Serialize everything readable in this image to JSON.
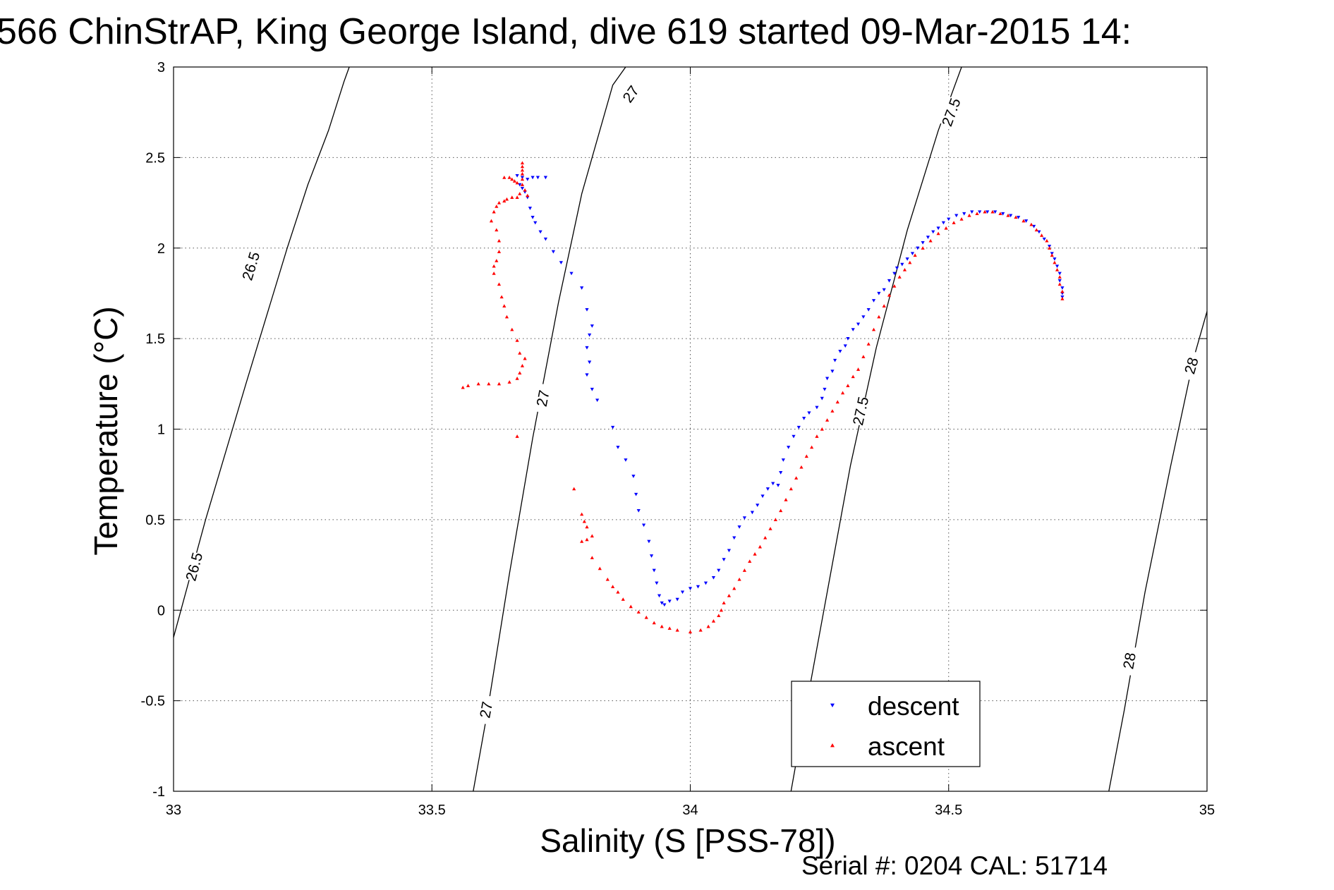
{
  "chart_data": {
    "type": "scatter",
    "title": "566 ChinStrAP, King George Island, dive 619 started 09-Mar-2015 14:",
    "xlabel": "Salinity (S [PSS-78])",
    "ylabel": "Temperature (°C)",
    "xlim": [
      33,
      35
    ],
    "ylim": [
      -1,
      3
    ],
    "x_ticks": [
      "33",
      "33.5",
      "34",
      "34.5",
      "35"
    ],
    "y_ticks": [
      "-1",
      "-0.5",
      "0",
      "0.5",
      "1",
      "1.5",
      "2",
      "2.5",
      "3"
    ],
    "grid": true,
    "legend_position": "bottom-right",
    "series": [
      {
        "name": "descent",
        "color": "#0000ff",
        "marker": "triangle-down",
        "points": [
          [
            33.665,
            2.4
          ],
          [
            33.675,
            2.39
          ],
          [
            33.685,
            2.38
          ],
          [
            33.695,
            2.39
          ],
          [
            33.705,
            2.39
          ],
          [
            33.72,
            2.39
          ],
          [
            33.67,
            2.35
          ],
          [
            33.675,
            2.33
          ],
          [
            33.68,
            2.31
          ],
          [
            33.685,
            2.28
          ],
          [
            33.69,
            2.22
          ],
          [
            33.695,
            2.17
          ],
          [
            33.7,
            2.14
          ],
          [
            33.71,
            2.09
          ],
          [
            33.72,
            2.05
          ],
          [
            33.735,
            1.98
          ],
          [
            33.75,
            1.92
          ],
          [
            33.77,
            1.86
          ],
          [
            33.79,
            1.78
          ],
          [
            33.8,
            1.66
          ],
          [
            33.81,
            1.57
          ],
          [
            33.805,
            1.52
          ],
          [
            33.8,
            1.45
          ],
          [
            33.805,
            1.37
          ],
          [
            33.8,
            1.3
          ],
          [
            33.81,
            1.22
          ],
          [
            33.82,
            1.16
          ],
          [
            33.85,
            1.01
          ],
          [
            33.86,
            0.9
          ],
          [
            33.875,
            0.83
          ],
          [
            33.89,
            0.74
          ],
          [
            33.895,
            0.64
          ],
          [
            33.9,
            0.55
          ],
          [
            33.91,
            0.47
          ],
          [
            33.92,
            0.38
          ],
          [
            33.925,
            0.3
          ],
          [
            33.93,
            0.22
          ],
          [
            33.935,
            0.15
          ],
          [
            33.94,
            0.08
          ],
          [
            33.945,
            0.04
          ],
          [
            33.95,
            0.03
          ],
          [
            33.96,
            0.05
          ],
          [
            33.975,
            0.06
          ],
          [
            33.985,
            0.1
          ],
          [
            34.0,
            0.12
          ],
          [
            34.015,
            0.13
          ],
          [
            34.03,
            0.15
          ],
          [
            34.045,
            0.18
          ],
          [
            34.055,
            0.22
          ],
          [
            34.065,
            0.28
          ],
          [
            34.075,
            0.33
          ],
          [
            34.085,
            0.4
          ],
          [
            34.095,
            0.46
          ],
          [
            34.105,
            0.51
          ],
          [
            34.12,
            0.54
          ],
          [
            34.13,
            0.58
          ],
          [
            34.14,
            0.63
          ],
          [
            34.15,
            0.67
          ],
          [
            34.16,
            0.7
          ],
          [
            34.17,
            0.69
          ],
          [
            34.175,
            0.76
          ],
          [
            34.18,
            0.83
          ],
          [
            34.19,
            0.9
          ],
          [
            34.2,
            0.96
          ],
          [
            34.21,
            1.01
          ],
          [
            34.22,
            1.06
          ],
          [
            34.23,
            1.09
          ],
          [
            34.245,
            1.12
          ],
          [
            34.255,
            1.17
          ],
          [
            34.26,
            1.22
          ],
          [
            34.265,
            1.28
          ],
          [
            34.275,
            1.32
          ],
          [
            34.28,
            1.38
          ],
          [
            34.29,
            1.43
          ],
          [
            34.3,
            1.46
          ],
          [
            34.305,
            1.5
          ],
          [
            34.315,
            1.55
          ],
          [
            34.325,
            1.58
          ],
          [
            34.335,
            1.62
          ],
          [
            34.345,
            1.66
          ],
          [
            34.355,
            1.71
          ],
          [
            34.365,
            1.75
          ],
          [
            34.375,
            1.77
          ],
          [
            34.385,
            1.82
          ],
          [
            34.395,
            1.86
          ],
          [
            34.4,
            1.89
          ],
          [
            34.41,
            1.91
          ],
          [
            34.42,
            1.94
          ],
          [
            34.43,
            1.97
          ],
          [
            34.44,
            2.0
          ],
          [
            34.45,
            2.03
          ],
          [
            34.46,
            2.06
          ],
          [
            34.47,
            2.09
          ],
          [
            34.48,
            2.11
          ],
          [
            34.49,
            2.14
          ],
          [
            34.5,
            2.16
          ],
          [
            34.515,
            2.18
          ],
          [
            34.53,
            2.19
          ],
          [
            34.545,
            2.2
          ],
          [
            34.56,
            2.2
          ],
          [
            34.575,
            2.2
          ],
          [
            34.59,
            2.2
          ],
          [
            34.605,
            2.19
          ],
          [
            34.62,
            2.18
          ],
          [
            34.635,
            2.17
          ],
          [
            34.65,
            2.15
          ],
          [
            34.665,
            2.12
          ],
          [
            34.675,
            2.09
          ],
          [
            34.685,
            2.05
          ],
          [
            34.695,
            2.01
          ],
          [
            34.7,
            1.97
          ],
          [
            34.705,
            1.94
          ],
          [
            34.71,
            1.9
          ],
          [
            34.715,
            1.86
          ],
          [
            34.715,
            1.82
          ],
          [
            34.72,
            1.78
          ],
          [
            34.72,
            1.75
          ],
          [
            34.72,
            1.73
          ]
        ]
      },
      {
        "name": "ascent",
        "color": "#ff0000",
        "marker": "triangle-up",
        "points": [
          [
            33.675,
            2.47
          ],
          [
            33.675,
            2.45
          ],
          [
            33.675,
            2.43
          ],
          [
            33.675,
            2.41
          ],
          [
            33.675,
            2.38
          ],
          [
            33.675,
            2.35
          ],
          [
            33.68,
            2.32
          ],
          [
            33.685,
            2.29
          ],
          [
            33.64,
            2.39
          ],
          [
            33.65,
            2.39
          ],
          [
            33.655,
            2.38
          ],
          [
            33.66,
            2.37
          ],
          [
            33.665,
            2.36
          ],
          [
            33.67,
            2.3
          ],
          [
            33.665,
            2.28
          ],
          [
            33.655,
            2.28
          ],
          [
            33.645,
            2.27
          ],
          [
            33.64,
            2.26
          ],
          [
            33.63,
            2.25
          ],
          [
            33.625,
            2.23
          ],
          [
            33.62,
            2.2
          ],
          [
            33.615,
            2.15
          ],
          [
            33.625,
            2.1
          ],
          [
            33.63,
            2.04
          ],
          [
            33.63,
            1.98
          ],
          [
            33.625,
            1.93
          ],
          [
            33.62,
            1.9
          ],
          [
            33.62,
            1.86
          ],
          [
            33.63,
            1.8
          ],
          [
            33.635,
            1.73
          ],
          [
            33.64,
            1.68
          ],
          [
            33.645,
            1.62
          ],
          [
            33.655,
            1.55
          ],
          [
            33.665,
            1.49
          ],
          [
            33.67,
            1.42
          ],
          [
            33.68,
            1.39
          ],
          [
            33.675,
            1.35
          ],
          [
            33.67,
            1.31
          ],
          [
            33.665,
            1.28
          ],
          [
            33.65,
            1.26
          ],
          [
            33.63,
            1.25
          ],
          [
            33.61,
            1.25
          ],
          [
            33.59,
            1.25
          ],
          [
            33.57,
            1.24
          ],
          [
            33.56,
            1.23
          ],
          [
            33.665,
            0.96
          ],
          [
            33.775,
            0.67
          ],
          [
            33.79,
            0.53
          ],
          [
            33.795,
            0.49
          ],
          [
            33.8,
            0.46
          ],
          [
            33.81,
            0.41
          ],
          [
            33.8,
            0.39
          ],
          [
            33.79,
            0.38
          ],
          [
            33.81,
            0.29
          ],
          [
            33.825,
            0.23
          ],
          [
            33.84,
            0.17
          ],
          [
            33.85,
            0.13
          ],
          [
            33.86,
            0.1
          ],
          [
            33.87,
            0.06
          ],
          [
            33.885,
            0.02
          ],
          [
            33.9,
            -0.01
          ],
          [
            33.915,
            -0.04
          ],
          [
            33.93,
            -0.07
          ],
          [
            33.945,
            -0.09
          ],
          [
            33.96,
            -0.1
          ],
          [
            33.975,
            -0.11
          ],
          [
            34.0,
            -0.12
          ],
          [
            34.02,
            -0.11
          ],
          [
            34.035,
            -0.09
          ],
          [
            34.045,
            -0.06
          ],
          [
            34.055,
            -0.03
          ],
          [
            34.06,
            0.0
          ],
          [
            34.065,
            0.04
          ],
          [
            34.075,
            0.08
          ],
          [
            34.085,
            0.12
          ],
          [
            34.095,
            0.17
          ],
          [
            34.105,
            0.22
          ],
          [
            34.115,
            0.27
          ],
          [
            34.125,
            0.31
          ],
          [
            34.135,
            0.35
          ],
          [
            34.145,
            0.4
          ],
          [
            34.155,
            0.45
          ],
          [
            34.165,
            0.5
          ],
          [
            34.175,
            0.55
          ],
          [
            34.185,
            0.61
          ],
          [
            34.195,
            0.67
          ],
          [
            34.205,
            0.73
          ],
          [
            34.215,
            0.79
          ],
          [
            34.225,
            0.85
          ],
          [
            34.235,
            0.9
          ],
          [
            34.245,
            0.96
          ],
          [
            34.255,
            1.0
          ],
          [
            34.265,
            1.05
          ],
          [
            34.275,
            1.1
          ],
          [
            34.285,
            1.15
          ],
          [
            34.295,
            1.2
          ],
          [
            34.305,
            1.24
          ],
          [
            34.315,
            1.29
          ],
          [
            34.325,
            1.33
          ],
          [
            34.335,
            1.4
          ],
          [
            34.345,
            1.47
          ],
          [
            34.355,
            1.55
          ],
          [
            34.365,
            1.62
          ],
          [
            34.375,
            1.68
          ],
          [
            34.385,
            1.74
          ],
          [
            34.395,
            1.79
          ],
          [
            34.405,
            1.84
          ],
          [
            34.415,
            1.88
          ],
          [
            34.425,
            1.92
          ],
          [
            34.435,
            1.96
          ],
          [
            34.45,
            2.0
          ],
          [
            34.465,
            2.04
          ],
          [
            34.48,
            2.08
          ],
          [
            34.495,
            2.11
          ],
          [
            34.51,
            2.14
          ],
          [
            34.525,
            2.16
          ],
          [
            34.54,
            2.18
          ],
          [
            34.555,
            2.19
          ],
          [
            34.57,
            2.2
          ],
          [
            34.585,
            2.2
          ],
          [
            34.6,
            2.19
          ],
          [
            34.615,
            2.18
          ],
          [
            34.63,
            2.17
          ],
          [
            34.645,
            2.15
          ],
          [
            34.66,
            2.13
          ],
          [
            34.67,
            2.1
          ],
          [
            34.68,
            2.07
          ],
          [
            34.69,
            2.04
          ],
          [
            34.695,
            2.0
          ],
          [
            34.7,
            1.96
          ],
          [
            34.705,
            1.92
          ],
          [
            34.71,
            1.88
          ],
          [
            34.715,
            1.84
          ],
          [
            34.715,
            1.8
          ],
          [
            34.72,
            1.76
          ],
          [
            34.72,
            1.72
          ]
        ]
      }
    ],
    "isopycnals": [
      {
        "label": "26.5",
        "points": [
          [
            33.0,
            -0.15
          ],
          [
            33.062,
            0.5
          ],
          [
            33.14,
            1.25
          ],
          [
            33.22,
            2.0
          ],
          [
            33.26,
            2.35
          ],
          [
            33.3,
            2.65
          ],
          [
            33.33,
            2.92
          ],
          [
            33.34,
            3.0
          ]
        ],
        "label_positions": [
          [
            33.04,
            0.24
          ],
          [
            33.15,
            1.9
          ]
        ]
      },
      {
        "label": "27",
        "points": [
          [
            33.58,
            -1.0
          ],
          [
            33.605,
            -0.6
          ],
          [
            33.65,
            0.2
          ],
          [
            33.695,
            0.95
          ],
          [
            33.745,
            1.7
          ],
          [
            33.79,
            2.3
          ],
          [
            33.85,
            2.9
          ],
          [
            33.875,
            3.0
          ]
        ],
        "label_positions": [
          [
            33.605,
            -0.55
          ],
          [
            33.715,
            1.17
          ],
          [
            33.885,
            2.85
          ]
        ]
      },
      {
        "label": "27.5",
        "points": [
          [
            34.195,
            -1.0
          ],
          [
            34.22,
            -0.6
          ],
          [
            34.265,
            0.1
          ],
          [
            34.31,
            0.8
          ],
          [
            34.36,
            1.45
          ],
          [
            34.42,
            2.1
          ],
          [
            34.48,
            2.65
          ],
          [
            34.525,
            3.0
          ]
        ],
        "label_positions": [
          [
            34.33,
            1.1
          ],
          [
            34.505,
            2.75
          ]
        ]
      },
      {
        "label": "28",
        "points": [
          [
            34.81,
            -1.0
          ],
          [
            34.84,
            -0.55
          ],
          [
            34.88,
            0.1
          ],
          [
            34.93,
            0.8
          ],
          [
            34.975,
            1.4
          ],
          [
            35.0,
            1.65
          ]
        ],
        "label_positions": [
          [
            34.85,
            -0.28
          ],
          [
            34.97,
            1.35
          ]
        ]
      }
    ],
    "legend": [
      "descent",
      "ascent"
    ],
    "footer": "Serial #: 0204  CAL: 51714"
  }
}
